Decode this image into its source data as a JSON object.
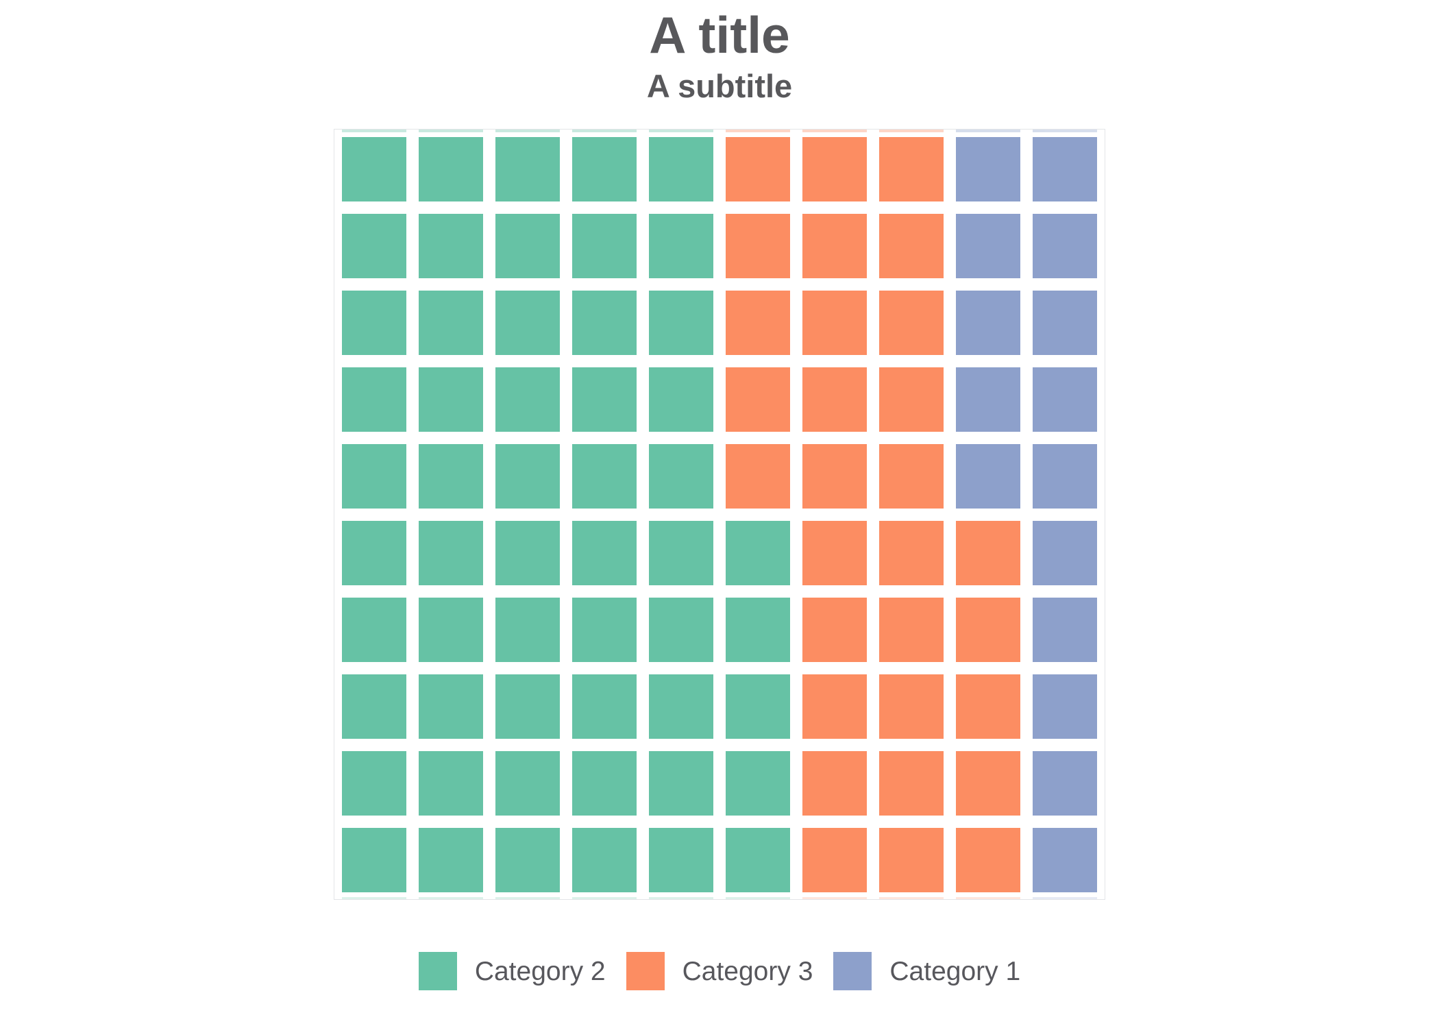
{
  "header": {
    "title": "A title",
    "subtitle": "A subtitle"
  },
  "chart_data": {
    "type": "waffle",
    "title": "A title",
    "subtitle": "A subtitle",
    "grid": {
      "rows": 10,
      "cols": 10,
      "total_cells": 100
    },
    "fill_order": "column-major, bottom-up, left-to-right",
    "series": [
      {
        "name": "Category 2",
        "cells": 55,
        "color": "#66c2a5"
      },
      {
        "name": "Category 3",
        "cells": 30,
        "color": "#fc8d62"
      },
      {
        "name": "Category 1",
        "cells": 15,
        "color": "#8da0cb"
      }
    ],
    "row_patterns_note": "each digit is an index into series[], rows listed top to bottom",
    "row_patterns": [
      "0000011122",
      "0000011122",
      "0000011122",
      "0000011122",
      "0000011122",
      "0000001112",
      "0000001112",
      "0000001112",
      "0000001112",
      "0000001112"
    ],
    "legend_position": "bottom"
  },
  "legend": {
    "items": [
      {
        "label": "Category 2",
        "color": "#66c2a5"
      },
      {
        "label": "Category 3",
        "color": "#fc8d62"
      },
      {
        "label": "Category 1",
        "color": "#8da0cb"
      }
    ]
  }
}
